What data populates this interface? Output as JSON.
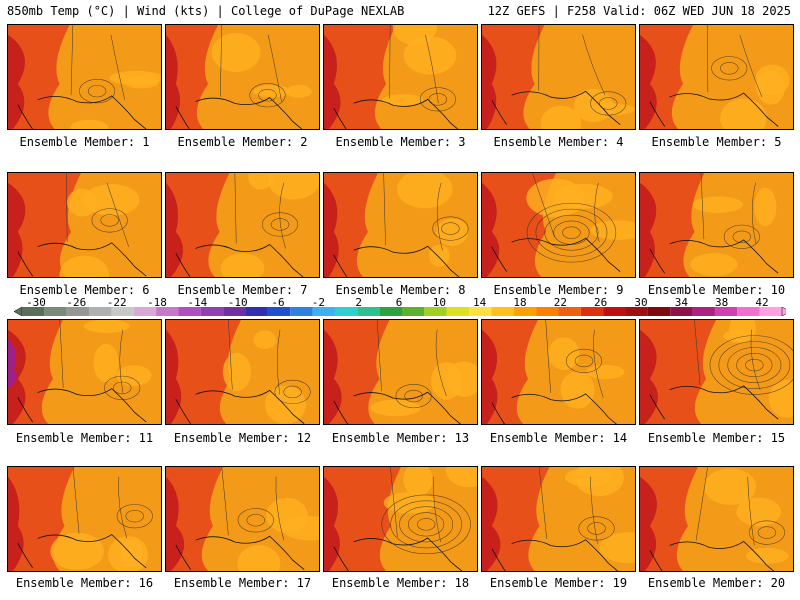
{
  "header": {
    "left": "850mb Temp (°C) | Wind (kts) | College of DuPage NEXLAB",
    "right": "12Z GEFS | F258 Valid: 06Z WED JUN 18 2025"
  },
  "panels": [
    {
      "label": "Ensemble Member: 1"
    },
    {
      "label": "Ensemble Member: 2"
    },
    {
      "label": "Ensemble Member: 3"
    },
    {
      "label": "Ensemble Member: 4"
    },
    {
      "label": "Ensemble Member: 5"
    },
    {
      "label": "Ensemble Member: 6"
    },
    {
      "label": "Ensemble Member: 7"
    },
    {
      "label": "Ensemble Member: 8"
    },
    {
      "label": "Ensemble Member: 9"
    },
    {
      "label": "Ensemble Member: 10"
    },
    {
      "label": "Ensemble Member: 11"
    },
    {
      "label": "Ensemble Member: 12"
    },
    {
      "label": "Ensemble Member: 13"
    },
    {
      "label": "Ensemble Member: 14"
    },
    {
      "label": "Ensemble Member: 15"
    },
    {
      "label": "Ensemble Member: 16"
    },
    {
      "label": "Ensemble Member: 17"
    },
    {
      "label": "Ensemble Member: 18"
    },
    {
      "label": "Ensemble Member: 19"
    },
    {
      "label": "Ensemble Member: 20"
    }
  ],
  "colorbar": {
    "ticks": [
      "-30",
      "-26",
      "-22",
      "-18",
      "-14",
      "-10",
      "-6",
      "-2",
      "2",
      "6",
      "10",
      "14",
      "18",
      "22",
      "26",
      "30",
      "34",
      "38",
      "42"
    ],
    "colors": [
      "#5a6e5a",
      "#7a8a7a",
      "#969696",
      "#b0b0b0",
      "#c8c8c8",
      "#d8a8d8",
      "#c878c8",
      "#b050c0",
      "#9040b0",
      "#7030a0",
      "#3030b0",
      "#2050d0",
      "#3080e0",
      "#40b0f0",
      "#30d0d0",
      "#30c090",
      "#30a040",
      "#60b030",
      "#a0d020",
      "#e0e020",
      "#ffe040",
      "#ffc020",
      "#ffa000",
      "#ff8000",
      "#f06010",
      "#e03010",
      "#c01010",
      "#a01010",
      "#800a10",
      "#901050",
      "#b02080",
      "#d040b0",
      "#f070d0",
      "#ffa0e0"
    ]
  }
}
